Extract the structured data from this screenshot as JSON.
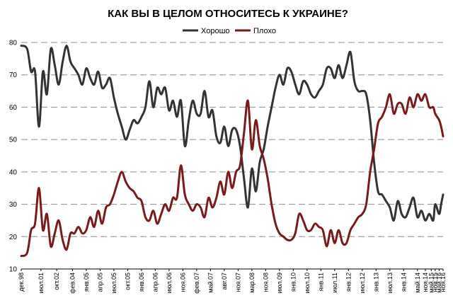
{
  "chart_data": {
    "type": "line",
    "title": "КАК ВЫ В ЦЕЛОМ ОТНОСИТЕСЬ К УКРАИНЕ?",
    "legend": [
      "Хорошо",
      "Плохо"
    ],
    "legend_position": "top-center",
    "ylim": [
      10,
      80
    ],
    "yticks": [
      10,
      20,
      30,
      40,
      50,
      60,
      70,
      80
    ],
    "grid": true,
    "x_range": [
      0,
      214
    ],
    "xticks": [
      {
        "x": 0,
        "label": "дек.98"
      },
      {
        "x": 10,
        "label": "июл.01"
      },
      {
        "x": 18,
        "label": "окт.02"
      },
      {
        "x": 26,
        "label": "фев.04"
      },
      {
        "x": 33,
        "label": "янв.05"
      },
      {
        "x": 40,
        "label": "апр.05"
      },
      {
        "x": 47,
        "label": "июл.05"
      },
      {
        "x": 54,
        "label": "окт.05"
      },
      {
        "x": 61,
        "label": "янв.06"
      },
      {
        "x": 68,
        "label": "апр.06"
      },
      {
        "x": 75,
        "label": "июл.06"
      },
      {
        "x": 82,
        "label": "ноя.06"
      },
      {
        "x": 89,
        "label": "фев.07"
      },
      {
        "x": 96,
        "label": "май.07"
      },
      {
        "x": 103,
        "label": "авг.07"
      },
      {
        "x": 110,
        "label": "ноя.07"
      },
      {
        "x": 117,
        "label": "мар.08"
      },
      {
        "x": 124,
        "label": "ноя.08"
      },
      {
        "x": 131,
        "label": "июл.09"
      },
      {
        "x": 138,
        "label": "янв.10"
      },
      {
        "x": 145,
        "label": "июл.10"
      },
      {
        "x": 152,
        "label": "янв.11"
      },
      {
        "x": 159,
        "label": "июл.11"
      },
      {
        "x": 166,
        "label": "янв.12"
      },
      {
        "x": 173,
        "label": "июл.12"
      },
      {
        "x": 180,
        "label": "янв.13"
      },
      {
        "x": 187,
        "label": "июл.13"
      },
      {
        "x": 194,
        "label": "янв.14"
      },
      {
        "x": 201,
        "label": "май.14"
      },
      {
        "x": 205,
        "label": "ноя.14"
      },
      {
        "x": 208,
        "label": "май.15"
      },
      {
        "x": 210,
        "label": "ноя.15"
      },
      {
        "x": 212,
        "label": "май.16"
      },
      {
        "x": 214,
        "label": "ноя.16"
      }
    ],
    "series": [
      {
        "name": "Хорошо",
        "color": "#333333",
        "points": [
          [
            0,
            79
          ],
          [
            3,
            78
          ],
          [
            5,
            71
          ],
          [
            7,
            71
          ],
          [
            9,
            54
          ],
          [
            11,
            71
          ],
          [
            13,
            64
          ],
          [
            15,
            78
          ],
          [
            17,
            73
          ],
          [
            19,
            67
          ],
          [
            21,
            74
          ],
          [
            23,
            79
          ],
          [
            25,
            74
          ],
          [
            27,
            72
          ],
          [
            29,
            70
          ],
          [
            31,
            67
          ],
          [
            33,
            72
          ],
          [
            35,
            69
          ],
          [
            37,
            67
          ],
          [
            39,
            71
          ],
          [
            41,
            66
          ],
          [
            43,
            67
          ],
          [
            45,
            69
          ],
          [
            47,
            63
          ],
          [
            49,
            58
          ],
          [
            51,
            54
          ],
          [
            53,
            50
          ],
          [
            55,
            53
          ],
          [
            57,
            56
          ],
          [
            59,
            55
          ],
          [
            61,
            57
          ],
          [
            63,
            60
          ],
          [
            65,
            68
          ],
          [
            67,
            60
          ],
          [
            69,
            66
          ],
          [
            71,
            64
          ],
          [
            73,
            66
          ],
          [
            75,
            59
          ],
          [
            77,
            62
          ],
          [
            79,
            57
          ],
          [
            81,
            62
          ],
          [
            83,
            48
          ],
          [
            85,
            56
          ],
          [
            87,
            62
          ],
          [
            89,
            58
          ],
          [
            91,
            58
          ],
          [
            93,
            65
          ],
          [
            95,
            57
          ],
          [
            97,
            59
          ],
          [
            99,
            51
          ],
          [
            101,
            49
          ],
          [
            103,
            54
          ],
          [
            105,
            48
          ],
          [
            107,
            53
          ],
          [
            109,
            53
          ],
          [
            111,
            48
          ],
          [
            113,
            38
          ],
          [
            115,
            29
          ],
          [
            117,
            41
          ],
          [
            119,
            34
          ],
          [
            121,
            43
          ],
          [
            123,
            47
          ],
          [
            125,
            54
          ],
          [
            127,
            60
          ],
          [
            129,
            66
          ],
          [
            131,
            70
          ],
          [
            133,
            67
          ],
          [
            135,
            72
          ],
          [
            137,
            71
          ],
          [
            139,
            67
          ],
          [
            141,
            64
          ],
          [
            143,
            68
          ],
          [
            145,
            67
          ],
          [
            147,
            64
          ],
          [
            149,
            63
          ],
          [
            151,
            65
          ],
          [
            153,
            67
          ],
          [
            155,
            72
          ],
          [
            157,
            72
          ],
          [
            159,
            69
          ],
          [
            161,
            73
          ],
          [
            163,
            69
          ],
          [
            165,
            73
          ],
          [
            167,
            77
          ],
          [
            169,
            68
          ],
          [
            171,
            65
          ],
          [
            173,
            65
          ],
          [
            175,
            64
          ],
          [
            177,
            56
          ],
          [
            179,
            43
          ],
          [
            181,
            34
          ],
          [
            183,
            33
          ],
          [
            185,
            31
          ],
          [
            187,
            29
          ],
          [
            189,
            25
          ],
          [
            191,
            31
          ],
          [
            193,
            27
          ],
          [
            195,
            26
          ],
          [
            197,
            29
          ],
          [
            199,
            32
          ],
          [
            201,
            26
          ],
          [
            203,
            28
          ],
          [
            205,
            25
          ],
          [
            207,
            27
          ],
          [
            209,
            25
          ],
          [
            210,
            30
          ],
          [
            212,
            27
          ],
          [
            213,
            30
          ],
          [
            214,
            33
          ]
        ]
      },
      {
        "name": "Плохо",
        "color": "#7a1a1a",
        "points": [
          [
            0,
            14
          ],
          [
            3,
            15
          ],
          [
            5,
            22
          ],
          [
            7,
            24
          ],
          [
            9,
            35
          ],
          [
            11,
            22
          ],
          [
            13,
            27
          ],
          [
            15,
            17
          ],
          [
            17,
            21
          ],
          [
            19,
            25
          ],
          [
            21,
            19
          ],
          [
            23,
            16
          ],
          [
            25,
            21
          ],
          [
            27,
            21
          ],
          [
            29,
            23
          ],
          [
            31,
            21
          ],
          [
            33,
            22
          ],
          [
            35,
            26
          ],
          [
            37,
            23
          ],
          [
            39,
            28
          ],
          [
            41,
            24
          ],
          [
            43,
            29
          ],
          [
            45,
            30
          ],
          [
            47,
            33
          ],
          [
            49,
            37
          ],
          [
            51,
            40
          ],
          [
            53,
            37
          ],
          [
            55,
            35
          ],
          [
            57,
            34
          ],
          [
            59,
            32
          ],
          [
            61,
            31
          ],
          [
            63,
            26
          ],
          [
            65,
            25
          ],
          [
            67,
            28
          ],
          [
            69,
            24
          ],
          [
            71,
            27
          ],
          [
            73,
            30
          ],
          [
            75,
            28
          ],
          [
            77,
            32
          ],
          [
            79,
            32
          ],
          [
            81,
            42
          ],
          [
            83,
            33
          ],
          [
            85,
            30
          ],
          [
            87,
            28
          ],
          [
            89,
            30
          ],
          [
            91,
            29
          ],
          [
            93,
            26
          ],
          [
            95,
            32
          ],
          [
            97,
            29
          ],
          [
            99,
            32
          ],
          [
            101,
            37
          ],
          [
            103,
            33
          ],
          [
            105,
            40
          ],
          [
            107,
            35
          ],
          [
            109,
            40
          ],
          [
            111,
            42
          ],
          [
            113,
            52
          ],
          [
            115,
            62
          ],
          [
            117,
            47
          ],
          [
            119,
            56
          ],
          [
            121,
            48
          ],
          [
            123,
            44
          ],
          [
            125,
            38
          ],
          [
            127,
            30
          ],
          [
            129,
            24
          ],
          [
            131,
            21
          ],
          [
            133,
            20
          ],
          [
            135,
            19
          ],
          [
            137,
            19
          ],
          [
            139,
            21
          ],
          [
            141,
            27
          ],
          [
            143,
            25
          ],
          [
            145,
            22
          ],
          [
            147,
            22
          ],
          [
            149,
            24
          ],
          [
            151,
            23
          ],
          [
            153,
            22
          ],
          [
            155,
            17
          ],
          [
            157,
            22
          ],
          [
            159,
            18
          ],
          [
            161,
            22
          ],
          [
            163,
            18
          ],
          [
            165,
            18
          ],
          [
            167,
            22
          ],
          [
            169,
            24
          ],
          [
            171,
            26
          ],
          [
            173,
            27
          ],
          [
            175,
            30
          ],
          [
            177,
            40
          ],
          [
            179,
            47
          ],
          [
            181,
            55
          ],
          [
            183,
            57
          ],
          [
            185,
            60
          ],
          [
            187,
            64
          ],
          [
            189,
            58
          ],
          [
            191,
            61
          ],
          [
            193,
            61
          ],
          [
            195,
            58
          ],
          [
            197,
            63
          ],
          [
            199,
            60
          ],
          [
            201,
            64
          ],
          [
            203,
            62
          ],
          [
            205,
            64
          ],
          [
            207,
            60
          ],
          [
            209,
            60
          ],
          [
            210,
            58
          ],
          [
            212,
            56
          ],
          [
            213,
            54
          ],
          [
            214,
            51
          ]
        ]
      }
    ]
  }
}
